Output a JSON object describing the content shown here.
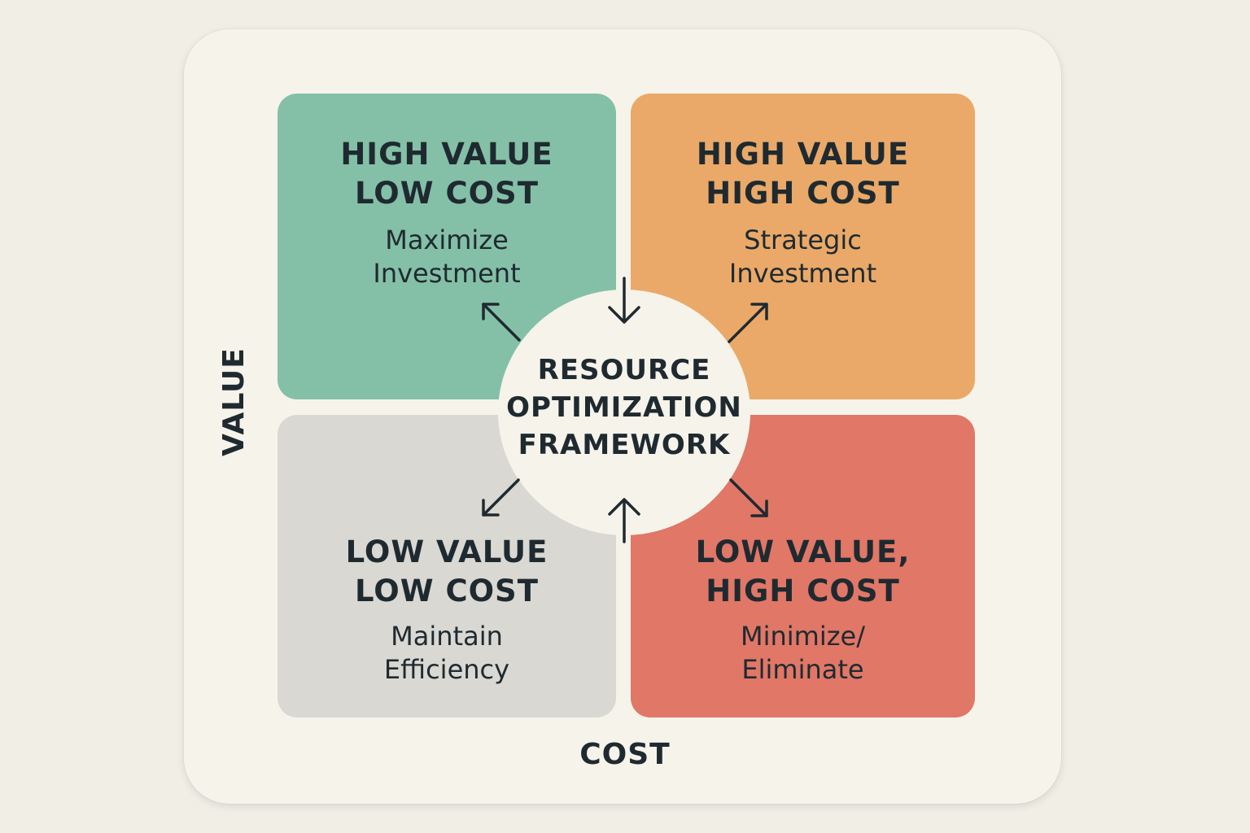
{
  "framework": {
    "center_title": "RESOURCE\nOPTIMIZATION\nFRAMEWORK",
    "axis_x_label": "COST",
    "axis_y_label": "VALUE"
  },
  "quadrants": [
    {
      "position": "top-left",
      "title": "HIGH VALUE\nLOW COST",
      "subtitle": "Maximize\nInvestment",
      "color": "#84c0a7"
    },
    {
      "position": "top-right",
      "title": "HIGH VALUE\nHIGH COST",
      "subtitle": "Strategic\nInvestment",
      "color": "#eaa968"
    },
    {
      "position": "bottom-left",
      "title": "LOW VALUE\nLOW COST",
      "subtitle": "Maintain\nEfficiency",
      "color": "#d9d8d2"
    },
    {
      "position": "bottom-right",
      "title": "LOW VALUE,\nHIGH COST",
      "subtitle": "Minimize/\nEliminate",
      "color": "#e07767"
    }
  ],
  "colors": {
    "background": "#f1eee6",
    "card": "#f6f3eb",
    "text": "#1f2a30"
  }
}
